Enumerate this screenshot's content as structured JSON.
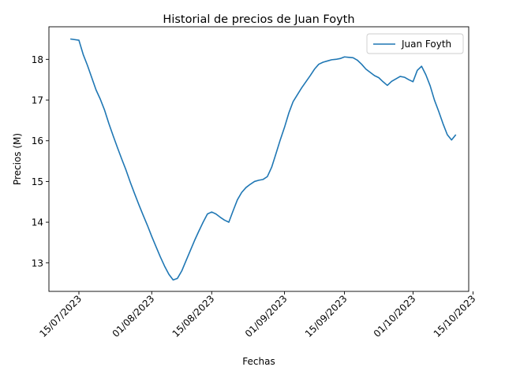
{
  "chart_data": {
    "type": "line",
    "title": "Historial de precios de Juan Foyth",
    "xlabel": "Fechas",
    "ylabel": "Precios (M)",
    "x_tick_labels": [
      "15/07/2023",
      "01/08/2023",
      "15/08/2023",
      "01/09/2023",
      "15/09/2023",
      "01/10/2023",
      "15/10/2023"
    ],
    "x_tick_dates": [
      "2023-07-15",
      "2023-08-01",
      "2023-08-15",
      "2023-09-01",
      "2023-09-15",
      "2023-10-01",
      "2023-10-15"
    ],
    "y_ticks": [
      13,
      14,
      15,
      16,
      17,
      18
    ],
    "xlim": [
      "2023-07-08",
      "2023-10-14"
    ],
    "ylim": [
      12.3,
      18.8
    ],
    "grid": false,
    "legend_position": "top-right",
    "color": "#1f77b4",
    "series": [
      {
        "name": "Juan Foyth",
        "x": [
          "2023-07-13",
          "2023-07-15",
          "2023-07-16",
          "2023-07-17",
          "2023-07-18",
          "2023-07-19",
          "2023-07-20",
          "2023-07-21",
          "2023-07-22",
          "2023-07-23",
          "2023-07-24",
          "2023-07-25",
          "2023-07-26",
          "2023-07-27",
          "2023-07-28",
          "2023-07-29",
          "2023-07-30",
          "2023-07-31",
          "2023-08-01",
          "2023-08-02",
          "2023-08-03",
          "2023-08-04",
          "2023-08-05",
          "2023-08-06",
          "2023-08-07",
          "2023-08-08",
          "2023-08-09",
          "2023-08-10",
          "2023-08-11",
          "2023-08-12",
          "2023-08-13",
          "2023-08-14",
          "2023-08-15",
          "2023-08-16",
          "2023-08-17",
          "2023-08-18",
          "2023-08-19",
          "2023-08-20",
          "2023-08-21",
          "2023-08-22",
          "2023-08-23",
          "2023-08-24",
          "2023-08-25",
          "2023-08-26",
          "2023-08-27",
          "2023-08-28",
          "2023-08-29",
          "2023-08-30",
          "2023-08-31",
          "2023-09-01",
          "2023-09-02",
          "2023-09-03",
          "2023-09-04",
          "2023-09-05",
          "2023-09-06",
          "2023-09-07",
          "2023-09-08",
          "2023-09-09",
          "2023-09-10",
          "2023-09-11",
          "2023-09-12",
          "2023-09-13",
          "2023-09-14",
          "2023-09-15",
          "2023-09-16",
          "2023-09-17",
          "2023-09-18",
          "2023-09-19",
          "2023-09-20",
          "2023-09-21",
          "2023-09-22",
          "2023-09-23",
          "2023-09-24",
          "2023-09-25",
          "2023-09-26",
          "2023-09-27",
          "2023-09-28",
          "2023-09-29",
          "2023-09-30",
          "2023-10-01",
          "2023-10-02",
          "2023-10-03",
          "2023-10-04",
          "2023-10-05",
          "2023-10-06",
          "2023-10-07",
          "2023-10-08",
          "2023-10-09",
          "2023-10-10",
          "2023-10-11"
        ],
        "values": [
          18.5,
          18.47,
          18.12,
          17.85,
          17.55,
          17.25,
          17.02,
          16.75,
          16.42,
          16.12,
          15.83,
          15.55,
          15.28,
          14.98,
          14.7,
          14.43,
          14.17,
          13.92,
          13.65,
          13.4,
          13.15,
          12.92,
          12.72,
          12.58,
          12.62,
          12.8,
          13.05,
          13.3,
          13.55,
          13.78,
          14.0,
          14.2,
          14.25,
          14.2,
          14.12,
          14.05,
          14.0,
          14.28,
          14.55,
          14.73,
          14.85,
          14.93,
          15.0,
          15.03,
          15.05,
          15.12,
          15.35,
          15.68,
          16.02,
          16.33,
          16.68,
          16.96,
          17.13,
          17.3,
          17.45,
          17.6,
          17.76,
          17.88,
          17.93,
          17.96,
          17.99,
          18.0,
          18.02,
          18.06,
          18.05,
          18.04,
          17.98,
          17.88,
          17.76,
          17.68,
          17.6,
          17.55,
          17.45,
          17.36,
          17.46,
          17.52,
          17.58,
          17.56,
          17.5,
          17.45,
          17.73,
          17.83,
          17.62,
          17.35,
          17.0,
          16.72,
          16.42,
          16.15,
          16.02,
          16.15
        ]
      }
    ]
  }
}
